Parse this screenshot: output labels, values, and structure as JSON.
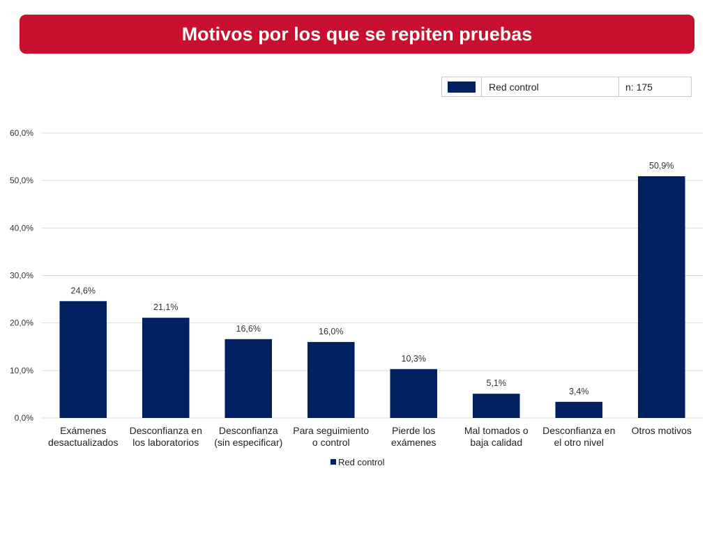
{
  "colors": {
    "banner": "#C8102E",
    "bar": "#002060",
    "grid": "#D9D9D9"
  },
  "title": "Motivos por los que se repiten pruebas",
  "info_box": {
    "series_label": "Red control",
    "n_label": "n: 175"
  },
  "chart_data": {
    "type": "bar",
    "title": "Motivos por los que se repiten pruebas",
    "xlabel": "",
    "ylabel": "",
    "ylim": [
      0,
      60
    ],
    "y_ticks": [
      0,
      10,
      20,
      30,
      40,
      50,
      60
    ],
    "y_tick_labels": [
      "0,0%",
      "10,0%",
      "20,0%",
      "30,0%",
      "40,0%",
      "50,0%",
      "60,0%"
    ],
    "grid": true,
    "legend_position": "bottom",
    "categories": [
      [
        "Exámenes",
        "desactualizados"
      ],
      [
        "Desconfianza en",
        "los laboratorios"
      ],
      [
        "Desconfianza",
        "(sin especificar)"
      ],
      [
        "Para seguimiento",
        "o control"
      ],
      [
        "Pierde los",
        "exámenes"
      ],
      [
        "Mal tomados o",
        "baja calidad"
      ],
      [
        "Desconfianza en",
        "el otro nivel"
      ],
      [
        "Otros motivos"
      ]
    ],
    "series": [
      {
        "name": "Red control",
        "values": [
          24.6,
          21.1,
          16.6,
          16.0,
          10.3,
          5.1,
          3.4,
          50.9
        ],
        "data_labels": [
          "24,6%",
          "21,1%",
          "16,6%",
          "16,0%",
          "10,3%",
          "5,1%",
          "3,4%",
          "50,9%"
        ]
      }
    ]
  }
}
